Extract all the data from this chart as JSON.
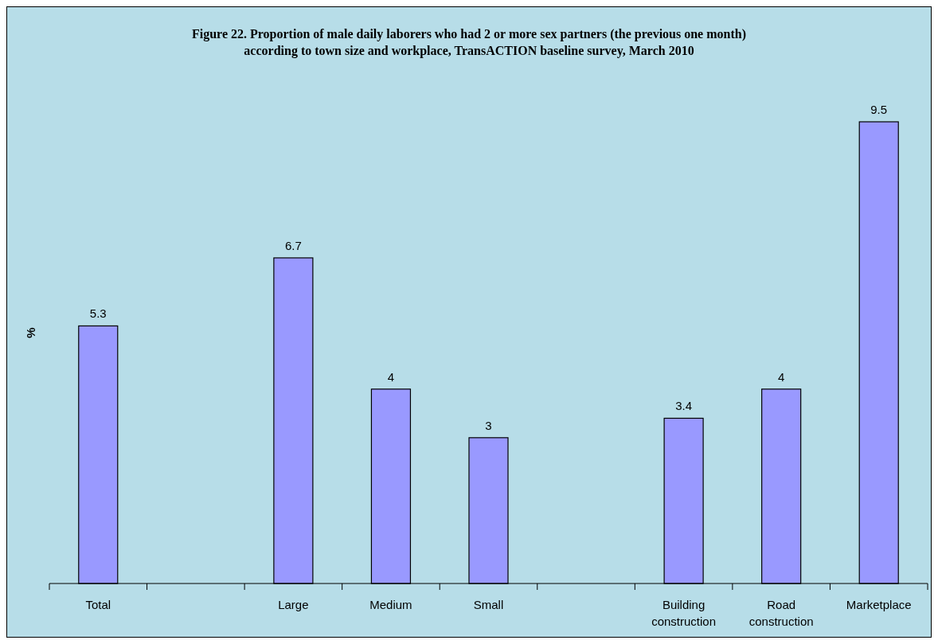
{
  "chart_data": {
    "type": "bar",
    "title": "Figure 22. Proportion of male daily laborers who had 2 or more sex partners (the previous one month) according to town size and workplace, TransACTION baseline survey, March 2010",
    "ylabel": "%",
    "categories": [
      "Total",
      null,
      "Large",
      "Medium",
      "Small",
      null,
      "Building construction",
      "Road construction",
      "Marketplace"
    ],
    "values": [
      5.3,
      null,
      6.7,
      4,
      3,
      null,
      3.4,
      4,
      9.5
    ],
    "color": "#9999ff",
    "data_labels": true
  }
}
